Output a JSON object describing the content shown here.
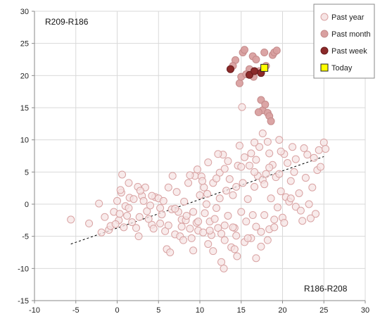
{
  "chart_data": {
    "type": "scatter",
    "title": "",
    "xlabel": "",
    "ylabel": "",
    "xlim": [
      -10,
      30
    ],
    "ylim": [
      -15,
      30
    ],
    "x_ticks": [
      "-10",
      "-5",
      "0",
      "5",
      "10",
      "15",
      "20",
      "25",
      "30"
    ],
    "y_ticks": [
      "-15",
      "-10",
      "-5",
      "0",
      "5",
      "10",
      "15",
      "20",
      "25",
      "30"
    ],
    "grid": true,
    "corner_labels": {
      "top_left": "R209-R186",
      "bottom_right": "R186-R208"
    },
    "legend": {
      "placement": "top-right",
      "entries": [
        "Past year",
        "Past month",
        "Past week",
        "Today"
      ]
    },
    "colors": {
      "past_year": "#f6e4e4",
      "past_year_edge": "#d9a3a3",
      "past_month": "#d9a0a0",
      "past_week": "#8b2a2a",
      "today": "#ffff00",
      "grid": "#d9d9d9",
      "trend": "#000000"
    },
    "series": [
      {
        "name": "Past year",
        "points": [
          [
            -5.6,
            -2.4
          ],
          [
            -3.4,
            -3.0
          ],
          [
            -2.2,
            0.1
          ],
          [
            -1.9,
            -4.4
          ],
          [
            -1.5,
            -2.0
          ],
          [
            -1.0,
            -4.0
          ],
          [
            -0.8,
            -3.4
          ],
          [
            -0.4,
            -1.2
          ],
          [
            0.0,
            0.5
          ],
          [
            0.2,
            -2.5
          ],
          [
            0.5,
            1.8
          ],
          [
            0.6,
            4.6
          ],
          [
            0.8,
            -3.6
          ],
          [
            1.0,
            -0.3
          ],
          [
            1.2,
            -1.8
          ],
          [
            1.5,
            1.0
          ],
          [
            1.8,
            -2.8
          ],
          [
            2.0,
            0.8
          ],
          [
            2.3,
            -3.7
          ],
          [
            2.5,
            2.7
          ],
          [
            2.7,
            -2.0
          ],
          [
            3.0,
            1.3
          ],
          [
            3.2,
            0.5
          ],
          [
            3.4,
            2.6
          ],
          [
            3.6,
            -1.1
          ],
          [
            4.0,
            -0.2
          ],
          [
            4.2,
            -3.2
          ],
          [
            4.4,
            -3.8
          ],
          [
            4.6,
            1.1
          ],
          [
            5.0,
            0.9
          ],
          [
            5.2,
            -0.6
          ],
          [
            5.4,
            -1.6
          ],
          [
            5.8,
            -4.2
          ],
          [
            6.0,
            -7.0
          ],
          [
            6.2,
            -3.3
          ],
          [
            6.4,
            -7.5
          ],
          [
            6.7,
            4.4
          ],
          [
            7.0,
            -4.7
          ],
          [
            7.2,
            1.9
          ],
          [
            7.4,
            -1.2
          ],
          [
            7.6,
            -5.0
          ],
          [
            7.8,
            -2.4
          ],
          [
            8.0,
            -5.6
          ],
          [
            8.3,
            -2.5
          ],
          [
            8.6,
            3.3
          ],
          [
            8.8,
            -3.8
          ],
          [
            9.0,
            -5.3
          ],
          [
            9.2,
            -1.2
          ],
          [
            9.4,
            4.4
          ],
          [
            9.6,
            -2.9
          ],
          [
            9.8,
            -4.1
          ],
          [
            10.0,
            1.4
          ],
          [
            10.2,
            4.3
          ],
          [
            10.4,
            -4.4
          ],
          [
            10.6,
            -1.4
          ],
          [
            10.9,
            1.6
          ],
          [
            11.0,
            6.5
          ],
          [
            11.2,
            -2.7
          ],
          [
            11.4,
            -4.8
          ],
          [
            11.6,
            3.3
          ],
          [
            11.8,
            -2.3
          ],
          [
            12.0,
            -0.6
          ],
          [
            12.2,
            -3.7
          ],
          [
            12.4,
            4.9
          ],
          [
            12.6,
            -9.0
          ],
          [
            12.8,
            7.7
          ],
          [
            13.0,
            -3.3
          ],
          [
            13.2,
            2.1
          ],
          [
            13.4,
            -1.8
          ],
          [
            13.6,
            3.9
          ],
          [
            13.8,
            -6.7
          ],
          [
            14.0,
            1.4
          ],
          [
            14.2,
            -3.7
          ],
          [
            14.4,
            -4.9
          ],
          [
            14.6,
            6.0
          ],
          [
            14.8,
            9.1
          ],
          [
            15.0,
            -1.2
          ],
          [
            15.1,
            15.1
          ],
          [
            15.2,
            3.3
          ],
          [
            15.4,
            -5.9
          ],
          [
            15.6,
            -2.7
          ],
          [
            15.8,
            0.8
          ],
          [
            16.0,
            6.0
          ],
          [
            16.2,
            7.9
          ],
          [
            16.4,
            -1.7
          ],
          [
            16.6,
            2.7
          ],
          [
            16.8,
            -3.5
          ],
          [
            17.0,
            4.4
          ],
          [
            17.2,
            8.9
          ],
          [
            17.4,
            -6.6
          ],
          [
            17.6,
            3.8
          ],
          [
            17.8,
            -1.7
          ],
          [
            18.0,
            4.7
          ],
          [
            18.2,
            9.7
          ],
          [
            18.4,
            -3.9
          ],
          [
            18.6,
            0.9
          ],
          [
            18.8,
            6.1
          ],
          [
            19.0,
            -2.4
          ],
          [
            19.2,
            4.2
          ],
          [
            19.4,
            -0.5
          ],
          [
            19.6,
            10.0
          ],
          [
            19.8,
            2.0
          ],
          [
            20.0,
            -2.1
          ],
          [
            20.2,
            7.8
          ],
          [
            20.4,
            1.1
          ],
          [
            20.6,
            6.4
          ],
          [
            20.8,
            0.4
          ],
          [
            21.0,
            3.6
          ],
          [
            21.2,
            8.9
          ],
          [
            21.6,
            -0.4
          ],
          [
            22.0,
            1.7
          ],
          [
            22.4,
            -2.6
          ],
          [
            22.8,
            4.1
          ],
          [
            23.0,
            7.7
          ],
          [
            23.2,
            0.0
          ],
          [
            23.6,
            2.6
          ],
          [
            24.0,
            -1.5
          ],
          [
            24.2,
            5.3
          ],
          [
            24.4,
            8.4
          ],
          [
            25.0,
            9.6
          ],
          [
            25.2,
            8.6
          ],
          [
            22.6,
            8.7
          ],
          [
            21.4,
            5.0
          ],
          [
            18.4,
            7.9
          ],
          [
            17.6,
            11.0
          ],
          [
            16.6,
            9.6
          ],
          [
            13.0,
            5.5
          ],
          [
            12.2,
            7.8
          ],
          [
            10.5,
            2.6
          ],
          [
            9.7,
            5.4
          ],
          [
            8.1,
            0.4
          ],
          [
            6.6,
            -0.8
          ],
          [
            5.2,
            -3.0
          ],
          [
            3.8,
            -2.3
          ],
          [
            2.6,
            -5.0
          ],
          [
            1.4,
            3.3
          ],
          [
            0.3,
            -1.5
          ],
          [
            -0.2,
            -3.1
          ],
          [
            11.6,
            -7.3
          ],
          [
            12.9,
            -10.0
          ],
          [
            14.5,
            -8.1
          ],
          [
            16.2,
            -5.3
          ],
          [
            16.8,
            -8.4
          ],
          [
            18.2,
            -5.6
          ],
          [
            14.2,
            -7.0
          ],
          [
            13.0,
            -5.6
          ],
          [
            11.0,
            -6.2
          ],
          [
            9.2,
            -7.2
          ],
          [
            7.8,
            -3.5
          ],
          [
            10.8,
            0.0
          ],
          [
            12.4,
            0.9
          ],
          [
            14.4,
            2.7
          ],
          [
            15.0,
            5.8
          ],
          [
            16.6,
            5.0
          ],
          [
            17.8,
            3.1
          ],
          [
            19.6,
            4.7
          ],
          [
            21.0,
            0.9
          ],
          [
            22.2,
            -1.0
          ],
          [
            23.4,
            -2.2
          ],
          [
            20.2,
            -2.9
          ],
          [
            19.0,
            -3.6
          ],
          [
            17.4,
            -4.3
          ],
          [
            15.8,
            -5.3
          ],
          [
            14.0,
            -3.6
          ],
          [
            12.6,
            -4.6
          ],
          [
            11.2,
            -4.1
          ],
          [
            9.8,
            -2.7
          ],
          [
            8.4,
            -1.8
          ],
          [
            7.0,
            -0.7
          ],
          [
            5.6,
            0.5
          ],
          [
            4.2,
            1.3
          ],
          [
            2.8,
            2.1
          ],
          [
            1.4,
            -0.6
          ],
          [
            0.4,
            2.2
          ],
          [
            6.2,
            2.6
          ],
          [
            8.8,
            4.5
          ],
          [
            10.3,
            3.6
          ],
          [
            12.0,
            4.0
          ],
          [
            13.4,
            6.7
          ],
          [
            15.4,
            7.3
          ],
          [
            16.8,
            6.9
          ],
          [
            18.4,
            5.7
          ],
          [
            19.8,
            8.2
          ],
          [
            21.6,
            7.0
          ],
          [
            23.8,
            7.2
          ],
          [
            24.6,
            5.8
          ]
        ]
      },
      {
        "name": "Past month",
        "points": [
          [
            14.8,
            18.8
          ],
          [
            15.0,
            19.8
          ],
          [
            15.2,
            23.6
          ],
          [
            15.4,
            24.0
          ],
          [
            16.0,
            21.0
          ],
          [
            16.4,
            23.0
          ],
          [
            17.2,
            20.7
          ],
          [
            17.4,
            16.2
          ],
          [
            17.6,
            14.6
          ],
          [
            17.8,
            23.6
          ],
          [
            17.9,
            15.5
          ],
          [
            18.2,
            14.2
          ],
          [
            18.4,
            13.7
          ],
          [
            18.6,
            12.9
          ],
          [
            18.8,
            23.2
          ],
          [
            19.0,
            23.6
          ],
          [
            19.3,
            23.9
          ],
          [
            16.8,
            22.5
          ],
          [
            14.3,
            22.4
          ],
          [
            14.0,
            21.5
          ],
          [
            17.1,
            14.3
          ],
          [
            18.0,
            21.5
          ],
          [
            16.5,
            19.8
          ],
          [
            15.6,
            20.2
          ]
        ]
      },
      {
        "name": "Past week",
        "points": [
          [
            13.7,
            21.0
          ],
          [
            16.0,
            20.1
          ],
          [
            16.6,
            20.7
          ],
          [
            17.4,
            20.4
          ]
        ]
      },
      {
        "name": "Today",
        "points": [
          [
            17.8,
            21.2
          ]
        ]
      }
    ],
    "trend_line": {
      "from": [
        -5.6,
        -6.2
      ],
      "to": [
        25.0,
        7.4
      ]
    }
  }
}
